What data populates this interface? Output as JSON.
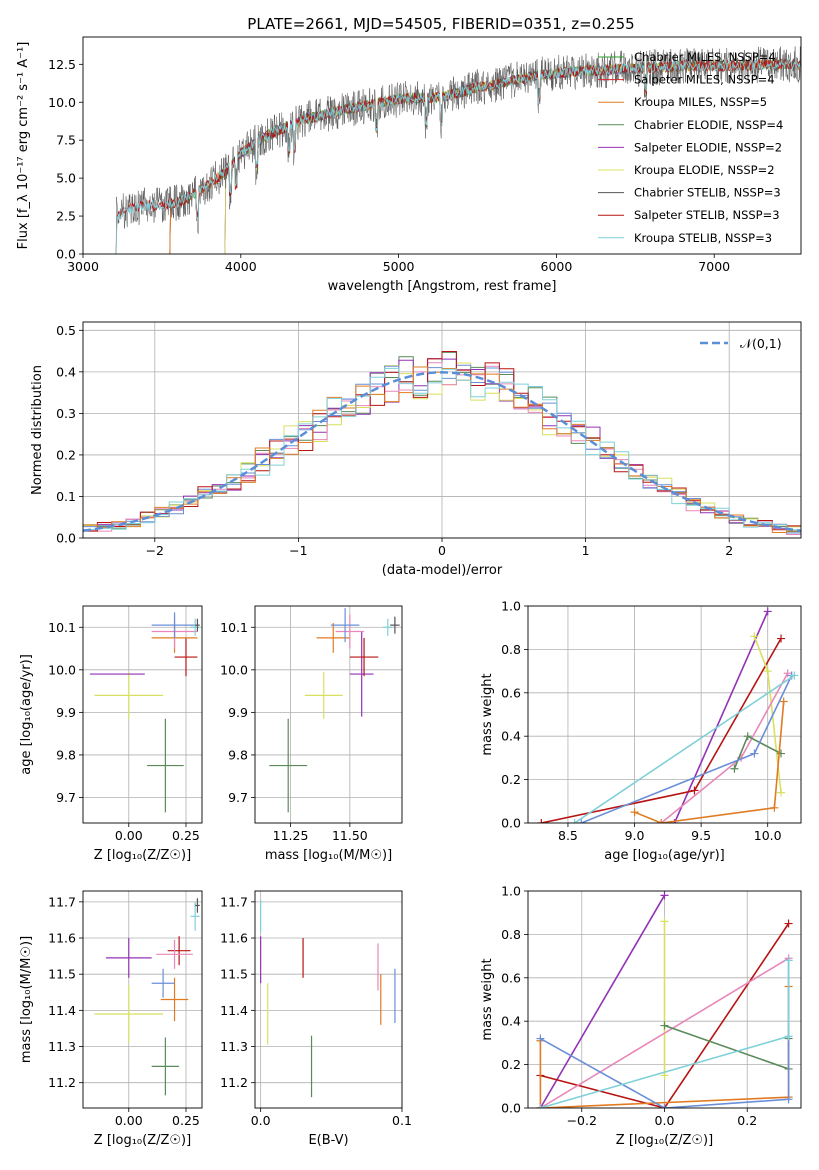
{
  "title": "PLATE=2661, MJD=54505, FIBERID=0351, z=0.255",
  "colors": [
    "#2ca02c",
    "#d62728",
    "#e07b22",
    "#5a8a5a",
    "#9432b5",
    "#d8e060",
    "#555555",
    "#b81414",
    "#7fd0d8",
    "#6a8fd8",
    "#e887b8",
    "#e07b22"
  ],
  "chart_data": [
    {
      "id": "spectrum",
      "type": "line",
      "title": "PLATE=2661, MJD=54505, FIBERID=0351, z=0.255",
      "xlabel": "wavelength [Angstrom, rest frame]",
      "ylabel": "Flux [f_λ 10⁻¹⁷ erg cm⁻² s⁻¹ A⁻¹]",
      "xlim": [
        3000,
        7550
      ],
      "ylim": [
        0,
        14.3
      ],
      "xticks": [
        "3000",
        "4000",
        "5000",
        "6000",
        "7000"
      ],
      "yticks": [
        "0.0",
        "2.5",
        "5.0",
        "7.5",
        "10.0",
        "12.5"
      ],
      "legend_position": "upper right",
      "grid": false,
      "continuum": {
        "x": [
          3210,
          3300,
          3400,
          3500,
          3600,
          3700,
          3800,
          3900,
          4000,
          4100,
          4200,
          4300,
          4400,
          4500,
          4600,
          4700,
          4800,
          4900,
          5000,
          5100,
          5200,
          5300,
          5400,
          5500,
          5600,
          5700,
          5800,
          5900,
          6000,
          6100,
          6200,
          6300,
          6400,
          6500,
          6600,
          6700,
          6800,
          6900,
          7000,
          7100,
          7200,
          7300,
          7400,
          7550
        ],
        "y": [
          2.6,
          3.0,
          3.2,
          3.2,
          3.4,
          3.9,
          4.6,
          5.4,
          6.6,
          7.4,
          8.0,
          8.4,
          8.9,
          9.1,
          9.4,
          9.6,
          9.8,
          10.0,
          10.2,
          10.3,
          10.3,
          10.4,
          10.7,
          11.0,
          11.1,
          11.4,
          11.6,
          11.8,
          11.9,
          12.0,
          12.1,
          12.1,
          12.2,
          12.2,
          12.3,
          12.3,
          12.4,
          12.4,
          12.4,
          12.4,
          12.4,
          12.5,
          12.5,
          12.5
        ]
      },
      "series": [
        {
          "name": "Chabrier MILES, N_SSP=4",
          "color": "#2ca02c",
          "start": 3550,
          "end": 7550
        },
        {
          "name": "Salpeter MILES, N_SSP=4",
          "color": "#d62728",
          "start": 3550,
          "end": 7550
        },
        {
          "name": "Kroupa MILES, N_SSP=5",
          "color": "#e07b22",
          "start": 3550,
          "end": 7550
        },
        {
          "name": "Chabrier ELODIE, N_SSP=4",
          "color": "#5a8a5a",
          "start": 3900,
          "end": 6800
        },
        {
          "name": "Salpeter ELODIE, N_SSP=2",
          "color": "#9432b5",
          "start": 3900,
          "end": 6800
        },
        {
          "name": "Kroupa ELODIE, N_SSP=2",
          "color": "#d8e060",
          "start": 3900,
          "end": 6800
        },
        {
          "name": "Chabrier STELIB, N_SSP=3",
          "color": "#555555",
          "start": 3210,
          "end": 7550
        },
        {
          "name": "Salpeter STELIB, N_SSP=3",
          "color": "#b81414",
          "start": 3210,
          "end": 7550
        },
        {
          "name": "Kroupa STELIB, N_SSP=3",
          "color": "#7fd0d8",
          "start": 3210,
          "end": 7550
        }
      ]
    },
    {
      "id": "residuals",
      "type": "line",
      "xlabel": "(data-model)/error",
      "ylabel": "Normed distribution",
      "xlim": [
        -2.5,
        2.5
      ],
      "ylim": [
        0,
        0.52
      ],
      "xticks": [
        "−2",
        "−1",
        "0",
        "1",
        "2"
      ],
      "yticks": [
        "0.0",
        "0.1",
        "0.2",
        "0.3",
        "0.4",
        "0.5"
      ],
      "grid": true,
      "legend": "𝒩(0,1)",
      "legend_position": "upper right",
      "gaussian": {
        "name": "𝒩(0,1)",
        "color": "#5a8fd8",
        "mu": 0,
        "sigma": 1
      },
      "histogram_bins": 50,
      "histogram_colors": [
        "#5a8a5a",
        "#9432b5",
        "#d8e060",
        "#e887b8",
        "#6a8fd8",
        "#b81414",
        "#e07b22",
        "#7fd0d8"
      ]
    },
    {
      "id": "age-vs-z",
      "type": "scatter",
      "xlabel": "Z [log₁₀(Z/Z☉)]",
      "ylabel": "age [log₁₀(age/yr)]",
      "xlim": [
        -0.2,
        0.32
      ],
      "ylim": [
        9.64,
        10.15
      ],
      "xticks": [
        "0.00",
        "0.25"
      ],
      "yticks": [
        "9.7",
        "9.8",
        "9.9",
        "10.0",
        "10.1"
      ],
      "grid": true,
      "points": [
        {
          "x": 0.16,
          "y": 9.775,
          "xerr": 0.08,
          "yerr": 0.11,
          "color": "#5a8a5a"
        },
        {
          "x": 0.0,
          "y": 9.94,
          "xerr": 0.15,
          "yerr": 0.055,
          "color": "#d8e060"
        },
        {
          "x": -0.05,
          "y": 9.99,
          "xerr": 0.12,
          "yerr": 0.0,
          "color": "#9432b5"
        },
        {
          "x": 0.25,
          "y": 10.03,
          "xerr": 0.05,
          "yerr": 0.045,
          "color": "#b81414"
        },
        {
          "x": 0.2,
          "y": 10.075,
          "xerr": 0.1,
          "yerr": 0.035,
          "color": "#e07b22"
        },
        {
          "x": 0.2,
          "y": 10.09,
          "xerr": 0.1,
          "yerr": 0.04,
          "color": "#e887b8"
        },
        {
          "x": 0.2,
          "y": 10.105,
          "xerr": 0.1,
          "yerr": 0.03,
          "color": "#6a8fd8"
        },
        {
          "x": 0.29,
          "y": 10.1,
          "xerr": 0.02,
          "yerr": 0.02,
          "color": "#7fd0d8"
        },
        {
          "x": 0.3,
          "y": 10.105,
          "xerr": 0.01,
          "yerr": 0.015,
          "color": "#555555"
        }
      ]
    },
    {
      "id": "age-vs-mass",
      "type": "scatter",
      "xlabel": "mass [log₁₀(M/M☉)]",
      "ylabel": "",
      "xlim": [
        11.1,
        11.72
      ],
      "ylim": [
        9.64,
        10.15
      ],
      "xticks": [
        "11.25",
        "11.50"
      ],
      "yticks": [
        "9.7",
        "9.8",
        "9.9",
        "10.0",
        "10.1"
      ],
      "grid": true,
      "points": [
        {
          "x": 11.24,
          "y": 9.775,
          "xerr": 0.08,
          "yerr": 0.11,
          "color": "#5a8a5a"
        },
        {
          "x": 11.39,
          "y": 9.94,
          "xerr": 0.08,
          "yerr": 0.055,
          "color": "#d8e060"
        },
        {
          "x": 11.55,
          "y": 9.99,
          "xerr": 0.05,
          "yerr": 0.1,
          "color": "#9432b5"
        },
        {
          "x": 11.56,
          "y": 10.03,
          "xerr": 0.06,
          "yerr": 0.045,
          "color": "#b81414"
        },
        {
          "x": 11.43,
          "y": 10.075,
          "xerr": 0.07,
          "yerr": 0.035,
          "color": "#e07b22"
        },
        {
          "x": 11.5,
          "y": 10.09,
          "xerr": 0.06,
          "yerr": 0.04,
          "color": "#e887b8"
        },
        {
          "x": 11.48,
          "y": 10.105,
          "xerr": 0.06,
          "yerr": 0.04,
          "color": "#6a8fd8"
        },
        {
          "x": 11.66,
          "y": 10.1,
          "xerr": 0.02,
          "yerr": 0.02,
          "color": "#7fd0d8"
        },
        {
          "x": 11.69,
          "y": 10.105,
          "xerr": 0.02,
          "yerr": 0.02,
          "color": "#555555"
        }
      ]
    },
    {
      "id": "weight-vs-age",
      "type": "line",
      "xlabel": "age [log₁₀(age/yr)]",
      "ylabel": "mass weight",
      "xlim": [
        8.2,
        10.25
      ],
      "ylim": [
        0,
        1.0
      ],
      "xticks": [
        "8.5",
        "9.0",
        "9.5",
        "10.0"
      ],
      "yticks": [
        "0.0",
        "0.2",
        "0.4",
        "0.6",
        "0.8",
        "1.0"
      ],
      "grid": true,
      "series": [
        {
          "color": "#9432b5",
          "x": [
            9.3,
            10.0
          ],
          "y": [
            0.0,
            0.975
          ]
        },
        {
          "color": "#b81414",
          "x": [
            8.3,
            9.45,
            10.1
          ],
          "y": [
            0.0,
            0.15,
            0.85
          ]
        },
        {
          "color": "#d8e060",
          "x": [
            9.9,
            10.0,
            10.1
          ],
          "y": [
            0.86,
            0.7,
            0.14
          ]
        },
        {
          "color": "#e887b8",
          "x": [
            9.2,
            9.8,
            10.15
          ],
          "y": [
            0.0,
            0.3,
            0.69
          ]
        },
        {
          "color": "#5a8a5a",
          "x": [
            9.75,
            9.85,
            10.1
          ],
          "y": [
            0.25,
            0.4,
            0.32
          ]
        },
        {
          "color": "#e07b22",
          "x": [
            9.0,
            9.2,
            10.05,
            10.12
          ],
          "y": [
            0.05,
            0.0,
            0.07,
            0.56
          ]
        },
        {
          "color": "#6a8fd8",
          "x": [
            8.6,
            9.9,
            10.18
          ],
          "y": [
            0.0,
            0.32,
            0.68
          ]
        },
        {
          "color": "#7fd0d8",
          "x": [
            8.55,
            10.2
          ],
          "y": [
            0.0,
            0.68
          ]
        }
      ]
    },
    {
      "id": "mass-vs-z",
      "type": "scatter",
      "xlabel": "Z [log₁₀(Z/Z☉)]",
      "ylabel": "mass [log₁₀(M/M☉)]",
      "xlim": [
        -0.2,
        0.32
      ],
      "ylim": [
        11.13,
        11.73
      ],
      "xticks": [
        "0.00",
        "0.25"
      ],
      "yticks": [
        "11.2",
        "11.3",
        "11.4",
        "11.5",
        "11.6",
        "11.7"
      ],
      "grid": true,
      "points": [
        {
          "x": 0.16,
          "y": 11.245,
          "xerr": 0.06,
          "yerr": 0.08,
          "color": "#5a8a5a"
        },
        {
          "x": 0.0,
          "y": 11.39,
          "xerr": 0.15,
          "yerr": 0.08,
          "color": "#d8e060"
        },
        {
          "x": 0.0,
          "y": 11.545,
          "xerr": 0.1,
          "yerr": 0.055,
          "color": "#9432b5"
        },
        {
          "x": 0.22,
          "y": 11.565,
          "xerr": 0.05,
          "yerr": 0.04,
          "color": "#b81414"
        },
        {
          "x": 0.2,
          "y": 11.43,
          "xerr": 0.06,
          "yerr": 0.06,
          "color": "#e07b22"
        },
        {
          "x": 0.2,
          "y": 11.555,
          "xerr": 0.08,
          "yerr": 0.04,
          "color": "#e887b8"
        },
        {
          "x": 0.15,
          "y": 11.475,
          "xerr": 0.05,
          "yerr": 0.04,
          "color": "#6a8fd8"
        },
        {
          "x": 0.29,
          "y": 11.66,
          "xerr": 0.02,
          "yerr": 0.04,
          "color": "#7fd0d8"
        },
        {
          "x": 0.3,
          "y": 11.69,
          "xerr": 0.01,
          "yerr": 0.02,
          "color": "#555555"
        }
      ]
    },
    {
      "id": "mass-vs-ebv",
      "type": "scatter",
      "xlabel": "E(B-V)",
      "ylabel": "",
      "xlim": [
        -0.004,
        0.1
      ],
      "ylim": [
        11.13,
        11.73
      ],
      "xticks": [
        "0.0",
        "0.1"
      ],
      "yticks": [
        "11.2",
        "11.3",
        "11.4",
        "11.5",
        "11.6",
        "11.7"
      ],
      "grid": true,
      "points": [
        {
          "x": 0.0,
          "y": 11.66,
          "xerr": 0.0,
          "yerr": 0.045,
          "color": "#7fd0d8"
        },
        {
          "x": 0.0,
          "y": 11.54,
          "xerr": 0.0,
          "yerr": 0.065,
          "color": "#9432b5"
        },
        {
          "x": 0.005,
          "y": 11.39,
          "xerr": 0.0,
          "yerr": 0.085,
          "color": "#d8e060"
        },
        {
          "x": 0.03,
          "y": 11.545,
          "xerr": 0.0,
          "yerr": 0.055,
          "color": "#b81414"
        },
        {
          "x": 0.036,
          "y": 11.245,
          "xerr": 0.0,
          "yerr": 0.085,
          "color": "#5a8a5a"
        },
        {
          "x": 0.083,
          "y": 11.52,
          "xerr": 0.0,
          "yerr": 0.065,
          "color": "#e887b8"
        },
        {
          "x": 0.085,
          "y": 11.43,
          "xerr": 0.0,
          "yerr": 0.07,
          "color": "#e07b22"
        },
        {
          "x": 0.095,
          "y": 11.44,
          "xerr": 0.0,
          "yerr": 0.075,
          "color": "#6a8fd8"
        }
      ]
    },
    {
      "id": "weight-vs-z",
      "type": "line",
      "xlabel": "Z [log₁₀(Z/Z☉)]",
      "ylabel": "mass weight",
      "xlim": [
        -0.33,
        0.33
      ],
      "ylim": [
        0,
        1.0
      ],
      "xticks": [
        "−0.2",
        "0.0",
        "0.2"
      ],
      "yticks": [
        "0.0",
        "0.2",
        "0.4",
        "0.6",
        "0.8",
        "1.0"
      ],
      "grid": true,
      "series": [
        {
          "color": "#9432b5",
          "x": [
            -0.3,
            0.0
          ],
          "y": [
            0.0,
            0.98
          ]
        },
        {
          "color": "#b81414",
          "x": [
            -0.3,
            0.0,
            0.3
          ],
          "y": [
            0.15,
            0.0,
            0.85
          ]
        },
        {
          "color": "#d8e060",
          "x": [
            0.0,
            0.0
          ],
          "y": [
            0.86,
            0.15
          ]
        },
        {
          "color": "#e887b8",
          "x": [
            -0.3,
            0.3
          ],
          "y": [
            0.0,
            0.69
          ]
        },
        {
          "color": "#5a8a5a",
          "x": [
            0.0,
            0.3,
            0.3
          ],
          "y": [
            0.38,
            0.18,
            0.32
          ]
        },
        {
          "color": "#e07b22",
          "x": [
            -0.3,
            -0.3,
            0.3,
            0.3
          ],
          "y": [
            0.31,
            0.0,
            0.05,
            0.56
          ]
        },
        {
          "color": "#6a8fd8",
          "x": [
            -0.3,
            0.0,
            0.3,
            0.3
          ],
          "y": [
            0.32,
            0.0,
            0.04,
            0.68
          ]
        },
        {
          "color": "#7fd0d8",
          "x": [
            -0.3,
            0.3,
            0.3
          ],
          "y": [
            0.0,
            0.33,
            0.68
          ]
        }
      ]
    }
  ]
}
